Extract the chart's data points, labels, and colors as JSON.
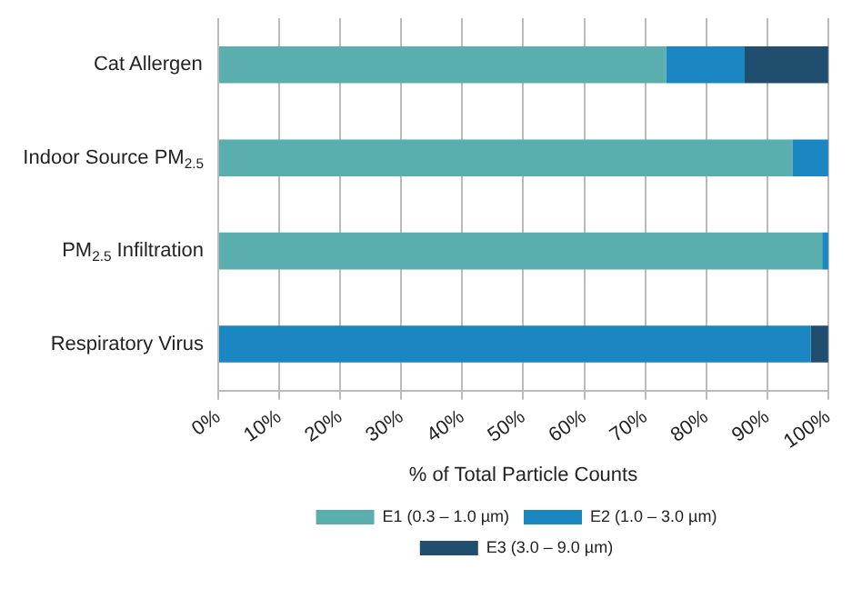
{
  "chart_data": {
    "type": "bar",
    "orientation": "horizontal",
    "stacked": true,
    "xlabel": "% of Total Particle Counts",
    "categories": [
      "Cat Allergen",
      "Indoor Source PM$_{2.5}$",
      "PM$_{2.5}$ Infiltration",
      "Respiratory Virus"
    ],
    "series": [
      {
        "name": "E1 (0.3 – 1.0 µm)",
        "color": "#5aaeae",
        "values": [
          73.4,
          94.1,
          99.0,
          0
        ]
      },
      {
        "name": "E2 (1.0 – 3.0 µm)",
        "color": "#1a86c2",
        "values": [
          12.9,
          5.9,
          1.0,
          97.1
        ]
      },
      {
        "name": "E3 (3.0 – 9.0 µm)",
        "color": "#1f4e6e",
        "values": [
          13.7,
          0,
          0,
          2.9
        ]
      }
    ],
    "xlim": [
      0,
      100
    ],
    "xticks": [
      {
        "value": 0,
        "label": "0%"
      },
      {
        "value": 10,
        "label": "10%"
      },
      {
        "value": 20,
        "label": "20%"
      },
      {
        "value": 30,
        "label": "30%"
      },
      {
        "value": 40,
        "label": "40%"
      },
      {
        "value": 50,
        "label": "50%"
      },
      {
        "value": 60,
        "label": "60%"
      },
      {
        "value": 70,
        "label": "70%"
      },
      {
        "value": 80,
        "label": "80%"
      },
      {
        "value": 90,
        "label": "90%"
      },
      {
        "value": 100,
        "label": "100%"
      }
    ],
    "grid": "x",
    "legend": "bottom"
  }
}
